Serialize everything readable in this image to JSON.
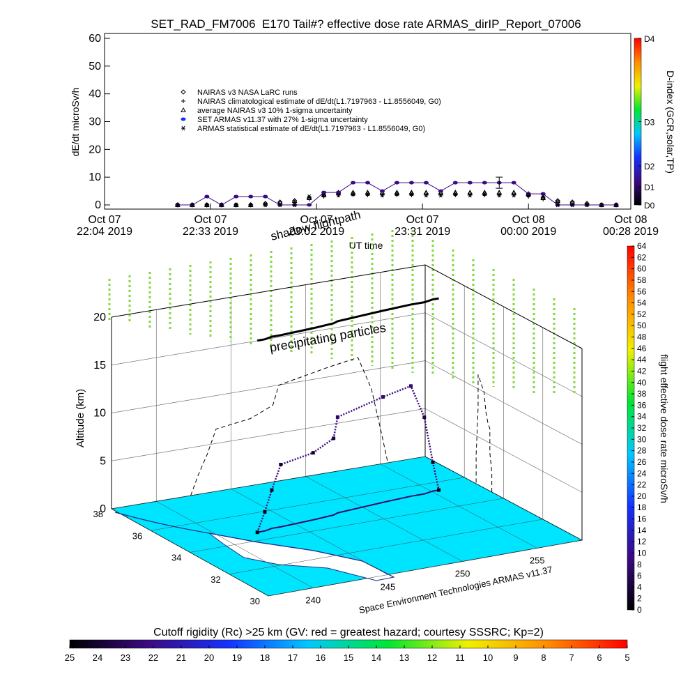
{
  "chart_data": [
    {
      "type": "line",
      "title": "SET_RAD_FM7006  E170 Tail#? effective dose rate ARMAS_dirIP_Report_07006",
      "ylabel": "dE/dt microSv/h",
      "xlabel": "UT time",
      "xlim": [
        "2019-10-07T22:04",
        "2019-10-08T00:28"
      ],
      "xticks": [
        {
          "value": "2019-10-07T22:04",
          "label": "Oct 07\n22:04 2019"
        },
        {
          "value": "2019-10-07T22:33",
          "label": "Oct 07\n22:33 2019"
        },
        {
          "value": "2019-10-07T23:02",
          "label": "Oct 07\n23:02 2019"
        },
        {
          "value": "2019-10-07T23:31",
          "label": "Oct 07\n23:31 2019"
        },
        {
          "value": "2019-10-08T00:00",
          "label": "Oct 08\n00:00 2019"
        },
        {
          "value": "2019-10-08T00:28",
          "label": "Oct 08\n00:28 2019"
        }
      ],
      "ylim": [
        0,
        60
      ],
      "yticks": [
        0,
        10,
        20,
        30,
        40,
        50,
        60
      ],
      "x": [
        "2019-10-07T22:24",
        "2019-10-07T22:28",
        "2019-10-07T22:32",
        "2019-10-07T22:36",
        "2019-10-07T22:40",
        "2019-10-07T22:44",
        "2019-10-07T22:48",
        "2019-10-07T22:52",
        "2019-10-07T22:56",
        "2019-10-07T23:00",
        "2019-10-07T23:04",
        "2019-10-07T23:08",
        "2019-10-07T23:12",
        "2019-10-07T23:16",
        "2019-10-07T23:20",
        "2019-10-07T23:24",
        "2019-10-07T23:28",
        "2019-10-07T23:32",
        "2019-10-07T23:36",
        "2019-10-07T23:40",
        "2019-10-07T23:44",
        "2019-10-07T23:48",
        "2019-10-07T23:52",
        "2019-10-07T23:56",
        "2019-10-08T00:00",
        "2019-10-08T00:04",
        "2019-10-08T00:08",
        "2019-10-08T00:12",
        "2019-10-08T00:16",
        "2019-10-08T00:20",
        "2019-10-08T00:24"
      ],
      "series": [
        {
          "name": "NAIRAS v3 NASA LaRC runs",
          "color": "#000000",
          "marker": "diamond",
          "values": [
            0,
            0,
            0,
            0,
            0,
            0,
            0.5,
            1,
            1.5,
            2.5,
            3.5,
            4,
            4,
            4,
            4,
            4,
            4,
            4,
            4,
            4,
            4,
            4,
            4,
            4,
            3.5,
            2.5,
            1.5,
            1,
            0.5,
            0,
            0
          ]
        },
        {
          "name": "NAIRAS climatological estimate of dE/dt(L1.7197963 - L1.8556049, G0)",
          "color": "#000000",
          "marker": "plus",
          "values": [
            0,
            0,
            0,
            0,
            0,
            0,
            0,
            0.5,
            1,
            2,
            3,
            3.5,
            3.5,
            3.5,
            3.5,
            3.5,
            3.5,
            3.5,
            3.5,
            3.5,
            3.5,
            3.5,
            3.5,
            3.5,
            3,
            2,
            1,
            0.5,
            0,
            0,
            0
          ]
        },
        {
          "name": "average NAIRAS v3 10% 1-sigma uncertainty",
          "color": "#000000",
          "marker": "triangle",
          "values": [
            0,
            0,
            0,
            0,
            0,
            0,
            0.5,
            1,
            1.5,
            2.5,
            3.5,
            4.5,
            4.5,
            4.5,
            4.5,
            4.5,
            4.5,
            4.5,
            4.5,
            4.5,
            4.5,
            4.5,
            4.5,
            4.5,
            4,
            2.5,
            1.5,
            1,
            0.5,
            0,
            0
          ]
        },
        {
          "name": "SET ARMAS v11.37 with 27% 1-sigma uncertainty",
          "color": "#3c0a82",
          "marker": "circle",
          "values": [
            0,
            0,
            3,
            0,
            3,
            3,
            3,
            0,
            0,
            0,
            4.5,
            4.5,
            8,
            8,
            5,
            8,
            8,
            8,
            5,
            8,
            8,
            8,
            8,
            8,
            4,
            4,
            0,
            0,
            0,
            0,
            0
          ],
          "errors": [
            null,
            null,
            null,
            null,
            null,
            null,
            null,
            null,
            null,
            null,
            null,
            null,
            null,
            null,
            null,
            null,
            null,
            null,
            null,
            null,
            null,
            null,
            2,
            null,
            null,
            null,
            null,
            null,
            null,
            null,
            null
          ]
        },
        {
          "name": "ARMAS statistical estimate of dE/dt(L1.7197963 - L1.8556049, G0)",
          "color": "#000000",
          "marker": "asterisk",
          "values": [
            0,
            0,
            0,
            0,
            0,
            0,
            0,
            0,
            0,
            3,
            3.5,
            3.5,
            4,
            4,
            3.5,
            4,
            4,
            3.5,
            3.5,
            4,
            3.5,
            4,
            3.5,
            3.5,
            3.5,
            3,
            0,
            0,
            0,
            0,
            0
          ]
        }
      ],
      "colorbar": {
        "title": "D-index (GCR,solar,TP)",
        "lim": [
          0,
          60
        ],
        "colormap": [
          "#000000",
          "#3c0a82",
          "#1432ff",
          "#00c8ff",
          "#00e632",
          "#f0f000",
          "#ff8c00",
          "#ff0000"
        ],
        "ticks": [
          {
            "value": 0,
            "label": "D0"
          },
          {
            "value": 6.5,
            "label": "D1"
          },
          {
            "value": 14,
            "label": "D2"
          },
          {
            "value": 30,
            "label": "D3"
          },
          {
            "value": 60,
            "label": "D4"
          }
        ]
      }
    },
    {
      "type": "scatter3d",
      "zlabel": "Altitude (km)",
      "xlim": [
        237,
        258
      ],
      "xticks": [
        240,
        245,
        250,
        255
      ],
      "ylim": [
        30,
        38
      ],
      "yticks": [
        30,
        32,
        34,
        36,
        38
      ],
      "zlim": [
        0,
        20
      ],
      "zticks": [
        0,
        5,
        10,
        15,
        20
      ],
      "annotations": [
        "shadow flightpath",
        "precipitating particles",
        "Space Environment Technologies ARMAS v11.37"
      ],
      "x": [
        242.3,
        242.8,
        243.4,
        244.0,
        246.3,
        247.8,
        248.2,
        251.5,
        253.5,
        254.4,
        255.1,
        255.5
      ],
      "y": [
        34.6,
        34.6,
        34.7,
        34.7,
        34.8,
        34.9,
        35.0,
        35.2,
        35.3,
        35.3,
        35.4,
        35.4
      ],
      "z": [
        0,
        2,
        4,
        6.5,
        7,
        8,
        10,
        11,
        11.5,
        8,
        3,
        0
      ],
      "values": [
        0,
        1,
        2,
        3,
        3,
        4,
        7,
        8,
        8,
        5,
        2,
        0
      ],
      "colormap": [
        "#000000",
        "#3c0a82",
        "#1432ff",
        "#00c8ff",
        "#00e632",
        "#f0f000",
        "#ff8c00",
        "#ff0000"
      ],
      "colorbar": {
        "title": "flight effective dose rate microSv/h",
        "lim": [
          0,
          64
        ],
        "ticks": [
          0,
          2,
          4,
          6,
          8,
          10,
          12,
          14,
          16,
          18,
          20,
          22,
          24,
          26,
          28,
          30,
          32,
          34,
          36,
          38,
          40,
          42,
          44,
          46,
          48,
          50,
          52,
          54,
          56,
          58,
          60,
          62,
          64
        ]
      },
      "colorbar2": {
        "title": "Cutoff rigidity (Rc) >25 km (GV: red = greatest hazard; courtesy SSSRC; Kp=2)",
        "lim": [
          25,
          5
        ],
        "ticks": [
          25,
          24,
          23,
          22,
          21,
          20,
          19,
          18,
          17,
          16,
          15,
          14,
          13,
          12,
          11,
          10,
          9,
          8,
          7,
          6,
          5
        ]
      }
    }
  ]
}
